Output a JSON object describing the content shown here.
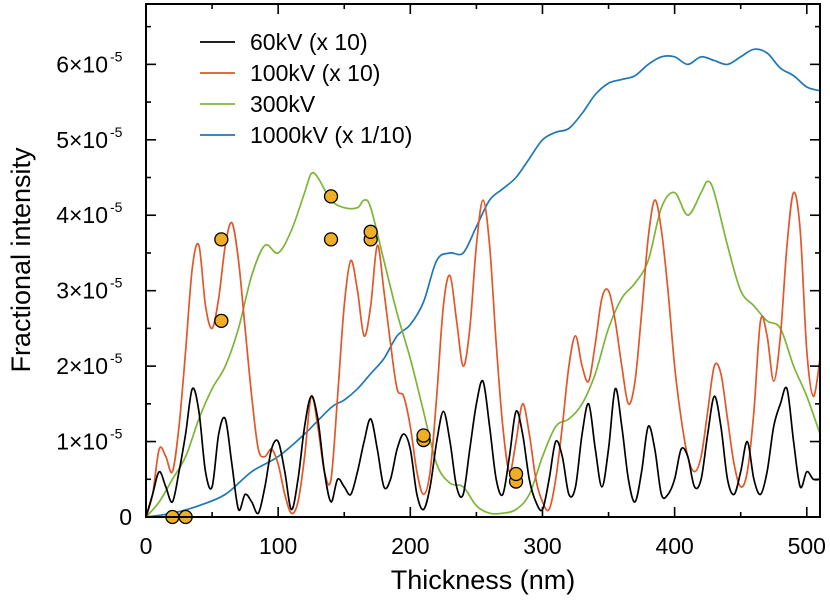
{
  "chart_data": {
    "type": "line",
    "xlabel": "Thickness (nm)",
    "ylabel": "Fractional intensity",
    "xlim": [
      0,
      510
    ],
    "ylim": [
      0,
      6.8
    ],
    "y_scale_label": "×10⁻⁵",
    "x_ticks": [
      0,
      100,
      200,
      300,
      400,
      500
    ],
    "y_ticks": [
      {
        "value": 0,
        "mant": "0",
        "exp": ""
      },
      {
        "value": 1,
        "mant": "1×10",
        "exp": "-5"
      },
      {
        "value": 2,
        "mant": "2×10",
        "exp": "-5"
      },
      {
        "value": 3,
        "mant": "3×10",
        "exp": "-5"
      },
      {
        "value": 4,
        "mant": "4×10",
        "exp": "-5"
      },
      {
        "value": 5,
        "mant": "5×10",
        "exp": "-5"
      },
      {
        "value": 6,
        "mant": "6×10",
        "exp": "-5"
      }
    ],
    "legend_position": "top-left",
    "series": [
      {
        "name": "60kV (x 10)",
        "color": "#000000",
        "x": [
          0,
          5,
          10,
          15,
          20,
          25,
          30,
          35,
          40,
          45,
          50,
          55,
          60,
          65,
          70,
          75,
          80,
          85,
          90,
          95,
          100,
          105,
          110,
          115,
          120,
          125,
          130,
          135,
          140,
          145,
          150,
          155,
          160,
          165,
          170,
          175,
          180,
          185,
          190,
          195,
          200,
          205,
          210,
          215,
          220,
          225,
          230,
          235,
          240,
          245,
          250,
          255,
          260,
          265,
          270,
          275,
          280,
          285,
          290,
          295,
          300,
          305,
          310,
          315,
          320,
          325,
          330,
          335,
          340,
          345,
          350,
          355,
          360,
          365,
          370,
          375,
          380,
          385,
          390,
          395,
          400,
          405,
          410,
          415,
          420,
          425,
          430,
          435,
          440,
          445,
          450,
          455,
          460,
          465,
          470,
          475,
          480,
          485,
          490,
          495,
          500,
          505,
          510
        ],
        "y": [
          0,
          0.3,
          0.6,
          0.4,
          0.2,
          0.6,
          1.1,
          1.7,
          1.4,
          0.6,
          0.4,
          1.1,
          1.3,
          0.7,
          0.1,
          0.3,
          0.2,
          0.05,
          0.4,
          0.9,
          1.0,
          0.6,
          0.1,
          0.5,
          1.2,
          1.6,
          1.3,
          0.6,
          0.2,
          0.5,
          0.4,
          0.3,
          0.6,
          1.0,
          1.3,
          0.9,
          0.4,
          0.5,
          0.9,
          1.1,
          0.9,
          0.3,
          0.1,
          0.4,
          1.0,
          1.4,
          1.0,
          0.4,
          0.3,
          0.9,
          1.5,
          1.8,
          1.2,
          0.5,
          0.3,
          0.8,
          1.4,
          1.1,
          0.5,
          0.2,
          0.1,
          0.5,
          1.0,
          0.8,
          0.3,
          0.4,
          1.1,
          1.5,
          0.9,
          0.4,
          0.9,
          1.7,
          1.2,
          0.5,
          0.2,
          0.6,
          1.2,
          0.9,
          0.3,
          0.3,
          0.5,
          0.9,
          0.8,
          0.4,
          0.5,
          1.1,
          1.6,
          1.2,
          0.5,
          0.3,
          0.6,
          1.0,
          0.5,
          0.3,
          0.6,
          1.2,
          1.5,
          1.7,
          1.0,
          0.4,
          0.6,
          0.5,
          0.5
        ]
      },
      {
        "name": "100kV (x 10)",
        "color": "#e0572a",
        "x": [
          0,
          5,
          10,
          15,
          20,
          25,
          30,
          35,
          40,
          45,
          50,
          55,
          60,
          65,
          70,
          75,
          80,
          85,
          90,
          95,
          100,
          105,
          110,
          115,
          120,
          125,
          130,
          135,
          140,
          145,
          150,
          155,
          160,
          165,
          170,
          175,
          180,
          185,
          190,
          195,
          200,
          205,
          210,
          215,
          220,
          225,
          230,
          235,
          240,
          245,
          250,
          255,
          260,
          265,
          270,
          275,
          280,
          285,
          290,
          295,
          300,
          305,
          310,
          315,
          320,
          325,
          330,
          335,
          340,
          345,
          350,
          355,
          360,
          365,
          370,
          375,
          380,
          385,
          390,
          395,
          400,
          405,
          410,
          415,
          420,
          425,
          430,
          435,
          440,
          445,
          450,
          455,
          460,
          465,
          470,
          475,
          480,
          485,
          490,
          495,
          500,
          505,
          510
        ],
        "y": [
          0,
          0.3,
          0.9,
          0.8,
          0.6,
          1.2,
          2.2,
          3.3,
          3.6,
          2.8,
          2.5,
          2.9,
          3.6,
          3.9,
          3.4,
          2.5,
          1.6,
          0.9,
          0.8,
          0.9,
          0.7,
          0.3,
          0.05,
          0.2,
          0.8,
          1.6,
          1.2,
          0.6,
          0.5,
          1.6,
          2.8,
          3.4,
          3.0,
          2.4,
          2.8,
          3.6,
          3.0,
          2.3,
          1.7,
          1.6,
          1.2,
          0.6,
          0.3,
          0.6,
          1.6,
          2.8,
          3.2,
          2.6,
          2.0,
          2.5,
          3.6,
          4.2,
          3.6,
          2.3,
          1.2,
          0.6,
          1.0,
          1.5,
          1.1,
          0.5,
          0.2,
          0.1,
          0.5,
          1.2,
          2.0,
          2.4,
          2.0,
          1.8,
          2.3,
          2.9,
          3.0,
          2.6,
          2.0,
          1.5,
          1.8,
          2.7,
          3.7,
          4.2,
          3.8,
          3.0,
          2.0,
          1.3,
          0.8,
          0.6,
          0.8,
          1.4,
          2.0,
          1.9,
          1.3,
          0.7,
          0.4,
          0.6,
          1.4,
          2.6,
          2.4,
          1.8,
          2.4,
          3.6,
          4.3,
          3.8,
          2.2,
          1.6,
          2.1
        ]
      },
      {
        "name": "300kV",
        "color": "#7db538",
        "x": [
          0,
          10,
          20,
          30,
          40,
          50,
          60,
          70,
          80,
          90,
          100,
          110,
          120,
          125,
          130,
          140,
          150,
          160,
          165,
          170,
          180,
          190,
          200,
          210,
          220,
          230,
          240,
          250,
          260,
          270,
          280,
          290,
          300,
          310,
          320,
          330,
          340,
          350,
          360,
          370,
          380,
          390,
          400,
          410,
          420,
          425,
          430,
          440,
          450,
          460,
          470,
          480,
          490,
          500,
          510
        ],
        "y": [
          0,
          0.2,
          0.5,
          0.8,
          1.3,
          1.7,
          2.0,
          2.5,
          3.2,
          3.6,
          3.5,
          3.8,
          4.3,
          4.55,
          4.5,
          4.2,
          4.1,
          4.1,
          4.2,
          4.1,
          3.4,
          2.7,
          2.1,
          1.4,
          0.7,
          0.45,
          0.4,
          0.15,
          0.05,
          0.05,
          0.1,
          0.3,
          0.8,
          1.2,
          1.3,
          1.5,
          1.9,
          2.5,
          2.9,
          3.1,
          3.4,
          4.1,
          4.3,
          4.0,
          4.3,
          4.45,
          4.3,
          3.6,
          3.0,
          2.8,
          2.6,
          2.5,
          2.0,
          1.6,
          1.1
        ]
      },
      {
        "name": "1000kV (x 1/10)",
        "color": "#1f77b4",
        "x": [
          0,
          20,
          40,
          60,
          80,
          100,
          120,
          140,
          150,
          160,
          170,
          180,
          190,
          200,
          210,
          220,
          230,
          240,
          250,
          260,
          270,
          280,
          290,
          300,
          310,
          320,
          330,
          340,
          350,
          360,
          370,
          380,
          390,
          400,
          410,
          420,
          430,
          440,
          450,
          460,
          470,
          480,
          490,
          500,
          510
        ],
        "y": [
          0,
          0.05,
          0.15,
          0.3,
          0.6,
          0.8,
          1.1,
          1.45,
          1.55,
          1.7,
          1.9,
          2.1,
          2.4,
          2.55,
          2.85,
          3.4,
          3.5,
          3.5,
          3.85,
          4.2,
          4.35,
          4.5,
          4.75,
          5.0,
          5.1,
          5.15,
          5.35,
          5.6,
          5.75,
          5.8,
          5.85,
          6.0,
          6.1,
          6.1,
          6.0,
          6.1,
          6.05,
          6.0,
          6.1,
          6.2,
          6.15,
          5.95,
          5.85,
          5.7,
          5.65
        ]
      }
    ],
    "markers": {
      "color": "#f0ae24",
      "points": [
        {
          "x": 20,
          "y": 0
        },
        {
          "x": 30,
          "y": 0
        },
        {
          "x": 57,
          "y": 2.6
        },
        {
          "x": 57,
          "y": 3.68
        },
        {
          "x": 140,
          "y": 3.68
        },
        {
          "x": 140,
          "y": 4.25
        },
        {
          "x": 170,
          "y": 3.68
        },
        {
          "x": 170,
          "y": 3.78
        },
        {
          "x": 210,
          "y": 1.02
        },
        {
          "x": 210,
          "y": 1.08
        },
        {
          "x": 280,
          "y": 0.47
        },
        {
          "x": 280,
          "y": 0.57
        }
      ]
    }
  }
}
